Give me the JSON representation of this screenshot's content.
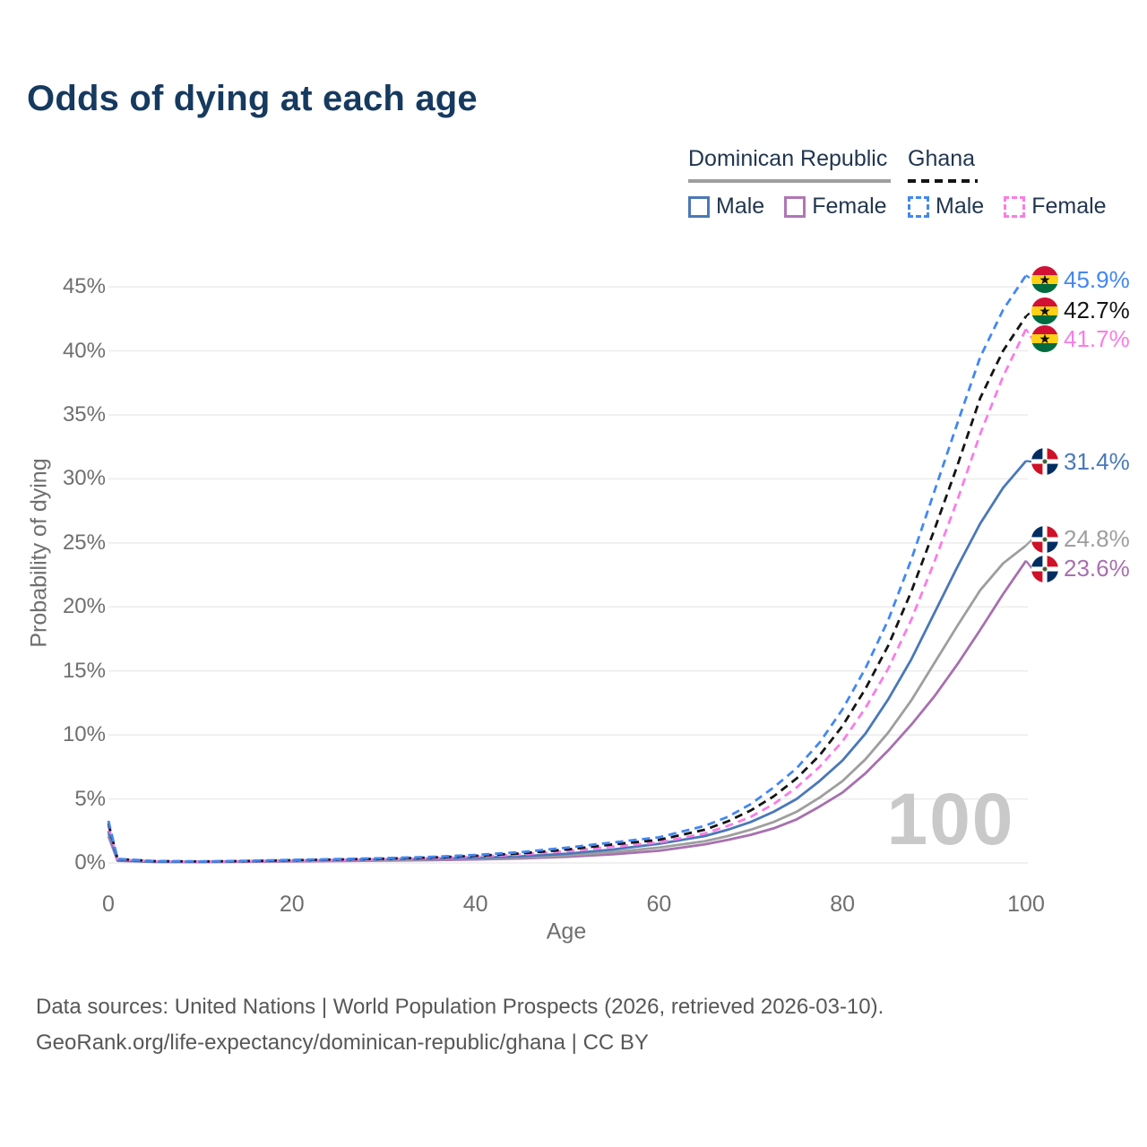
{
  "title": "Odds of dying at each age",
  "watermark": "100",
  "legend": {
    "groups": [
      {
        "country": "Dominican Republic",
        "line_style": "solid",
        "line_color": "#9e9e9e",
        "items": [
          {
            "label": "Male",
            "color": "#4a78b8",
            "style": "solid"
          },
          {
            "label": "Female",
            "color": "#b076b6",
            "style": "solid"
          }
        ]
      },
      {
        "country": "Ghana",
        "line_style": "dashed",
        "line_color": "#141414",
        "items": [
          {
            "label": "Male",
            "color": "#4387f1",
            "style": "dashed"
          },
          {
            "label": "Female",
            "color": "#fa7ce6",
            "style": "dashed"
          }
        ]
      }
    ]
  },
  "chart_data": {
    "type": "line",
    "title": "Odds of dying at each age",
    "xlabel": "Age",
    "ylabel": "Probability of dying",
    "xlim": [
      0,
      100
    ],
    "ylim_pct": [
      0,
      46
    ],
    "grid": "horizontal",
    "x_ticks": [
      "0",
      "20",
      "40",
      "60",
      "80",
      "100"
    ],
    "y_ticks": [
      "0%",
      "5%",
      "10%",
      "15%",
      "20%",
      "25%",
      "30%",
      "35%",
      "40%",
      "45%"
    ],
    "x": [
      0,
      1,
      5,
      10,
      15,
      20,
      25,
      30,
      35,
      40,
      45,
      50,
      55,
      60,
      65,
      67.5,
      70,
      72.5,
      75,
      77.5,
      80,
      82.5,
      85,
      87.5,
      90,
      92.5,
      95,
      97.5,
      100
    ],
    "series": [
      {
        "name": "Ghana Male",
        "flag": "ghana-flag",
        "color": "#4387f1",
        "dash": "dashed",
        "end_label": "45.9%",
        "values": [
          3.3,
          0.32,
          0.15,
          0.12,
          0.17,
          0.24,
          0.3,
          0.37,
          0.47,
          0.62,
          0.85,
          1.2,
          1.6,
          2.0,
          2.9,
          3.6,
          4.6,
          5.9,
          7.4,
          9.4,
          12.0,
          15.2,
          19.0,
          23.7,
          29.0,
          34.3,
          39.5,
          43.2,
          45.9
        ]
      },
      {
        "name": "Ghana Both sexes",
        "flag": "ghana-flag",
        "color": "#141414",
        "dash": "dashed",
        "end_label": "42.7%",
        "values": [
          3.1,
          0.3,
          0.14,
          0.11,
          0.15,
          0.21,
          0.27,
          0.33,
          0.42,
          0.55,
          0.75,
          1.05,
          1.45,
          1.8,
          2.6,
          3.25,
          4.1,
          5.2,
          6.6,
          8.4,
          10.7,
          13.6,
          17.0,
          21.2,
          26.0,
          31.0,
          36.3,
          40.0,
          42.7
        ]
      },
      {
        "name": "Ghana Female",
        "flag": "ghana-flag",
        "color": "#fa7ce6",
        "dash": "dashed",
        "end_label": "41.7%",
        "values": [
          2.9,
          0.28,
          0.13,
          0.1,
          0.13,
          0.18,
          0.23,
          0.29,
          0.37,
          0.49,
          0.66,
          0.92,
          1.28,
          1.6,
          2.3,
          2.9,
          3.6,
          4.6,
          5.9,
          7.5,
          9.5,
          12.1,
          15.2,
          19.0,
          23.5,
          28.3,
          33.5,
          38.0,
          41.7
        ]
      },
      {
        "name": "Dominican Republic Male",
        "flag": "dominican-republic-flag",
        "color": "#4a78b8",
        "dash": "solid",
        "end_label": "31.4%",
        "values": [
          2.5,
          0.2,
          0.1,
          0.09,
          0.13,
          0.19,
          0.24,
          0.28,
          0.33,
          0.4,
          0.52,
          0.72,
          1.05,
          1.5,
          2.1,
          2.6,
          3.2,
          4.0,
          5.0,
          6.4,
          8.0,
          10.1,
          12.8,
          15.9,
          19.5,
          23.1,
          26.5,
          29.3,
          31.4
        ]
      },
      {
        "name": "Dominican Republic Both sexes",
        "flag": "dominican-republic-flag",
        "color": "#9e9e9e",
        "dash": "solid",
        "end_label": "24.8%",
        "values": [
          2.3,
          0.19,
          0.09,
          0.08,
          0.11,
          0.15,
          0.19,
          0.23,
          0.27,
          0.33,
          0.43,
          0.59,
          0.85,
          1.2,
          1.7,
          2.1,
          2.6,
          3.2,
          4.0,
          5.1,
          6.4,
          8.1,
          10.2,
          12.7,
          15.6,
          18.5,
          21.3,
          23.4,
          24.8
        ]
      },
      {
        "name": "Dominican Republic Female",
        "flag": "dominican-republic-flag",
        "color": "#a770af",
        "dash": "solid",
        "end_label": "23.6%",
        "values": [
          2.1,
          0.17,
          0.08,
          0.07,
          0.09,
          0.12,
          0.15,
          0.18,
          0.22,
          0.27,
          0.35,
          0.48,
          0.68,
          0.95,
          1.45,
          1.8,
          2.2,
          2.7,
          3.4,
          4.4,
          5.5,
          7.0,
          8.8,
          10.8,
          13.0,
          15.5,
          18.2,
          21.0,
          23.6
        ]
      }
    ]
  },
  "footer": {
    "line1": "Data sources: United Nations | World Population Prospects (2026, retrieved 2026-03-10).",
    "line2": "GeoRank.org/life-expectancy/dominican-republic/ghana | CC BY"
  }
}
